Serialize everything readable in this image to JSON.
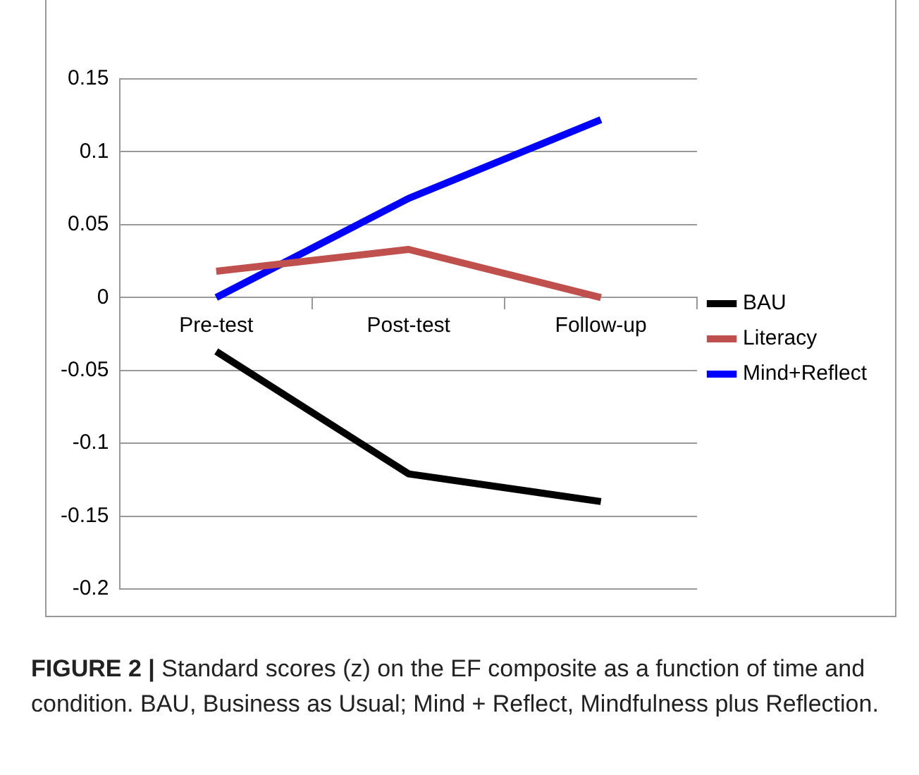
{
  "chart_data": {
    "type": "line",
    "categories": [
      "Pre-test",
      "Post-test",
      "Follow-up"
    ],
    "series": [
      {
        "name": "BAU",
        "color": "#000000",
        "values": [
          -0.037,
          -0.121,
          -0.14
        ]
      },
      {
        "name": "Literacy",
        "color": "#c0504d",
        "values": [
          0.018,
          0.033,
          0.0
        ]
      },
      {
        "name": "Mind+Reflect",
        "color": "#0000ff",
        "values": [
          0.0,
          0.068,
          0.122
        ]
      }
    ],
    "ylim": [
      -0.2,
      0.15
    ],
    "yticks": [
      -0.2,
      -0.15,
      -0.1,
      -0.05,
      0,
      0.05,
      0.1,
      0.15
    ],
    "grid": "y",
    "legend": "right",
    "marker": "none",
    "line_style": "solid",
    "annotations": [
      "FIGURE 2 |",
      "Standard scores (z) on the EF composite as a function of time and condition. BAU, Business as Usual; Mind + Reflect, Mindfulness plus Reflection."
    ]
  }
}
